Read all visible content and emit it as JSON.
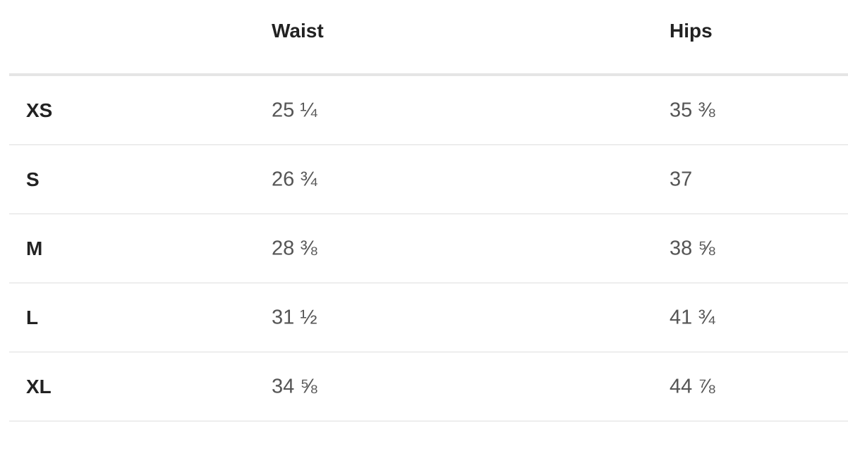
{
  "table": {
    "headers": [
      "",
      "Waist",
      "Hips"
    ],
    "rows": [
      {
        "size": "XS",
        "waist": "25 ¼",
        "hips": "35 ⅜"
      },
      {
        "size": "S",
        "waist": "26 ¾",
        "hips": "37"
      },
      {
        "size": "M",
        "waist": "28 ⅜",
        "hips": "38 ⅝"
      },
      {
        "size": "L",
        "waist": "31 ½",
        "hips": "41 ¾"
      },
      {
        "size": "XL",
        "waist": "34 ⅝",
        "hips": "44 ⅞"
      }
    ]
  }
}
